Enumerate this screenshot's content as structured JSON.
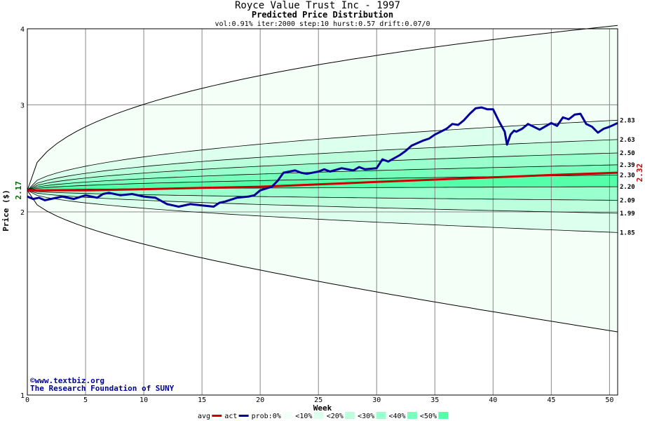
{
  "chart_data": {
    "type": "area",
    "title": "Royce Value Trust Inc - 1997",
    "subtitle": "Predicted Price Distribution",
    "params": "vol:0.91% iter:2000 step:10 hurst:0.57 drift:0.07/0",
    "xlabel": "Week",
    "ylabel": "Price ($)",
    "xlim": [
      0,
      50.7
    ],
    "ylim": [
      1,
      4
    ],
    "y_scale": "log",
    "grid": true,
    "x_ticks": [
      "0",
      "5",
      "10",
      "15",
      "20",
      "25",
      "30",
      "35",
      "40",
      "45",
      "50"
    ],
    "x_tick_values": [
      0,
      5,
      10,
      15,
      20,
      25,
      30,
      35,
      40,
      45,
      50
    ],
    "y_ticks": [
      "1",
      "2",
      "3",
      "4"
    ],
    "y_tick_values": [
      1,
      2,
      3,
      4
    ],
    "start_value": "2.17",
    "end_value": "2.32",
    "start": 2.17,
    "end_labels": [
      {
        "label": "2.83",
        "value": 2.83
      },
      {
        "label": "2.63",
        "value": 2.63
      },
      {
        "label": "2.50",
        "value": 2.5
      },
      {
        "label": "2.39",
        "value": 2.39
      },
      {
        "label": "2.30",
        "value": 2.3
      },
      {
        "label": "2.20",
        "value": 2.2
      },
      {
        "label": "2.09",
        "value": 2.09
      },
      {
        "label": "1.99",
        "value": 1.99
      },
      {
        "label": "1.85",
        "value": 1.85
      }
    ],
    "outer_band": {
      "upper_end": 4.05,
      "lower_end": 1.27
    },
    "bands": [
      {
        "name": "<10%",
        "upper": 2.83,
        "lower": 1.85,
        "color": "#ddffee"
      },
      {
        "name": "<20%",
        "upper": 2.63,
        "lower": 1.99,
        "color": "#bbffdd"
      },
      {
        "name": "<30%",
        "upper": 2.5,
        "lower": 2.09,
        "color": "#99ffcc"
      },
      {
        "name": "<40%",
        "upper": 2.39,
        "lower": 2.2,
        "color": "#77ffbb"
      },
      {
        "name": "<50%",
        "upper": 2.3,
        "lower": 2.2,
        "color": "#55ffaa"
      }
    ],
    "series": [
      {
        "name": "avg",
        "color": "#cc0000",
        "x": [
          0,
          5,
          10,
          15,
          20,
          25,
          30,
          35,
          40,
          45,
          50.7
        ],
        "y": [
          2.17,
          2.17,
          2.18,
          2.19,
          2.2,
          2.22,
          2.24,
          2.26,
          2.28,
          2.3,
          2.32
        ]
      },
      {
        "name": "act",
        "color": "#000099",
        "x": [
          0,
          0.5,
          1,
          1.5,
          2,
          3,
          4,
          5,
          6,
          6.5,
          7,
          8,
          9,
          10,
          11,
          12,
          12.5,
          13,
          14,
          15,
          16,
          16.5,
          17,
          18,
          19,
          19.5,
          20,
          21,
          21.5,
          22,
          23,
          23.5,
          24,
          25,
          25.5,
          26,
          27,
          28,
          28.5,
          29,
          30,
          30.5,
          31,
          32,
          32.5,
          33,
          34,
          34.5,
          35,
          36,
          36.5,
          37,
          37.5,
          38,
          38.5,
          39,
          39.5,
          40,
          40.5,
          41,
          41.2,
          41.5,
          41.8,
          42,
          42.5,
          43,
          43.5,
          44,
          45,
          45.5,
          46,
          46.5,
          47,
          47.5,
          48,
          48.5,
          49,
          49.5,
          50,
          50.7
        ],
        "y": [
          2.12,
          2.1,
          2.11,
          2.09,
          2.1,
          2.12,
          2.1,
          2.13,
          2.11,
          2.14,
          2.15,
          2.13,
          2.14,
          2.12,
          2.11,
          2.06,
          2.05,
          2.04,
          2.06,
          2.05,
          2.04,
          2.07,
          2.08,
          2.11,
          2.12,
          2.13,
          2.17,
          2.2,
          2.25,
          2.32,
          2.34,
          2.32,
          2.31,
          2.33,
          2.35,
          2.33,
          2.36,
          2.34,
          2.37,
          2.35,
          2.36,
          2.44,
          2.42,
          2.48,
          2.52,
          2.57,
          2.62,
          2.64,
          2.68,
          2.74,
          2.79,
          2.78,
          2.83,
          2.9,
          2.96,
          2.97,
          2.95,
          2.95,
          2.82,
          2.71,
          2.58,
          2.68,
          2.72,
          2.71,
          2.74,
          2.79,
          2.76,
          2.73,
          2.8,
          2.77,
          2.86,
          2.84,
          2.89,
          2.9,
          2.79,
          2.76,
          2.7,
          2.74,
          2.76,
          2.8
        ]
      }
    ],
    "legend": [
      {
        "label": "avg",
        "kind": "line",
        "color": "#cc0000"
      },
      {
        "label": "act",
        "kind": "line",
        "color": "#000099"
      },
      {
        "label": "prob:0%",
        "kind": "box",
        "color": "#f4fff8"
      },
      {
        "label": "<10%",
        "kind": "box",
        "color": "#ddffee"
      },
      {
        "label": "<20%",
        "kind": "box",
        "color": "#bbffdd"
      },
      {
        "label": "<30%",
        "kind": "box",
        "color": "#99ffcc"
      },
      {
        "label": "<40%",
        "kind": "box",
        "color": "#77ffbb"
      },
      {
        "label": "<50%",
        "kind": "box",
        "color": "#55ffaa"
      }
    ],
    "copyright": "©www.textbiz.org",
    "org": "The Research Foundation of SUNY",
    "colors": {
      "gridline": "#888888",
      "envelope": "#000000",
      "start_label": "#006600",
      "end_label": "#cc0000",
      "org_text": "#000099"
    }
  }
}
